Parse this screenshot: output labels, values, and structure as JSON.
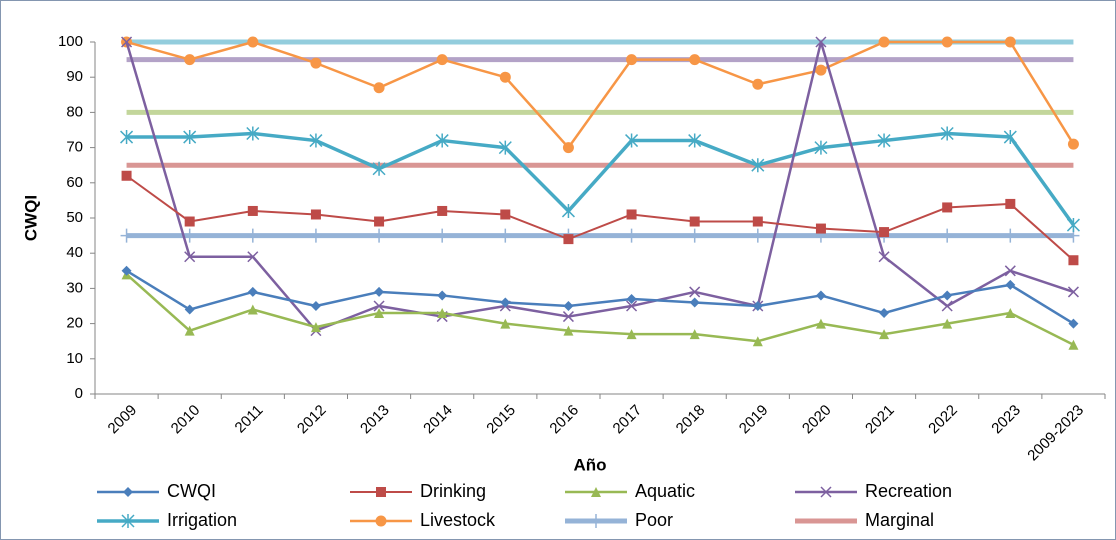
{
  "chart_data": {
    "type": "line",
    "x_label": "Año",
    "y_label": "CWQI",
    "categories": [
      "2009",
      "2010",
      "2011",
      "2012",
      "2013",
      "2014",
      "2015",
      "2016",
      "2017",
      "2018",
      "2019",
      "2020",
      "2021",
      "2022",
      "2023",
      "2009-2023"
    ],
    "ylim": [
      0,
      100
    ],
    "yticks": [
      0,
      10,
      20,
      30,
      40,
      50,
      60,
      70,
      80,
      90,
      100
    ],
    "grid": false,
    "legend": "bottom",
    "series": [
      {
        "name": "CWQI",
        "color": "#4a7ebb",
        "marker": "diamond",
        "line_width": 2.5,
        "values": [
          35,
          24,
          29,
          25,
          29,
          28,
          26,
          25,
          27,
          26,
          25,
          28,
          23,
          28,
          31,
          20
        ]
      },
      {
        "name": "Drinking",
        "color": "#be4b48",
        "marker": "square",
        "line_width": 2,
        "values": [
          62,
          49,
          52,
          51,
          49,
          52,
          51,
          44,
          51,
          49,
          49,
          47,
          46,
          53,
          54,
          38
        ]
      },
      {
        "name": "Aquatic",
        "color": "#98b954",
        "marker": "triangle",
        "line_width": 2.5,
        "values": [
          34,
          18,
          24,
          19,
          23,
          23,
          20,
          18,
          17,
          17,
          15,
          20,
          17,
          20,
          23,
          14
        ]
      },
      {
        "name": "Recreation",
        "color": "#7d60a0",
        "marker": "x",
        "line_width": 2.5,
        "values": [
          100,
          39,
          39,
          18,
          25,
          22,
          25,
          22,
          25,
          29,
          25,
          100,
          39,
          25,
          35,
          29
        ]
      },
      {
        "name": "Irrigation",
        "color": "#46aac5",
        "marker": "star",
        "line_width": 3.5,
        "values": [
          73,
          73,
          74,
          72,
          64,
          72,
          70,
          52,
          72,
          72,
          65,
          70,
          72,
          74,
          73,
          48
        ]
      },
      {
        "name": "Livestock",
        "color": "#f79646",
        "marker": "circle",
        "line_width": 2.5,
        "values": [
          100,
          95,
          100,
          94,
          87,
          95,
          90,
          70,
          95,
          95,
          88,
          92,
          100,
          100,
          100,
          71
        ]
      },
      {
        "name": "Poor",
        "color": "#95b3d7",
        "marker": "plus",
        "line_width": 5,
        "values": [
          45,
          45,
          45,
          45,
          45,
          45,
          45,
          45,
          45,
          45,
          45,
          45,
          45,
          45,
          45,
          45
        ]
      },
      {
        "name": "Marginal",
        "color": "#d99694",
        "marker": "none",
        "line_width": 5,
        "values": [
          65,
          65,
          65,
          65,
          65,
          65,
          65,
          65,
          65,
          65,
          65,
          65,
          65,
          65,
          65,
          65
        ]
      },
      {
        "color": "#c3d69b",
        "marker": "none",
        "line_width": 5,
        "values": [
          80,
          80,
          80,
          80,
          80,
          80,
          80,
          80,
          80,
          80,
          80,
          80,
          80,
          80,
          80,
          80
        ]
      },
      {
        "color": "#b3a2c7",
        "marker": "none",
        "line_width": 5,
        "values": [
          95,
          95,
          95,
          95,
          95,
          95,
          95,
          95,
          95,
          95,
          95,
          95,
          95,
          95,
          95,
          95
        ]
      },
      {
        "color": "#93cddd",
        "marker": "none",
        "line_width": 5,
        "values": [
          100,
          100,
          100,
          100,
          100,
          100,
          100,
          100,
          100,
          100,
          100,
          100,
          100,
          100,
          100,
          100
        ]
      }
    ]
  }
}
